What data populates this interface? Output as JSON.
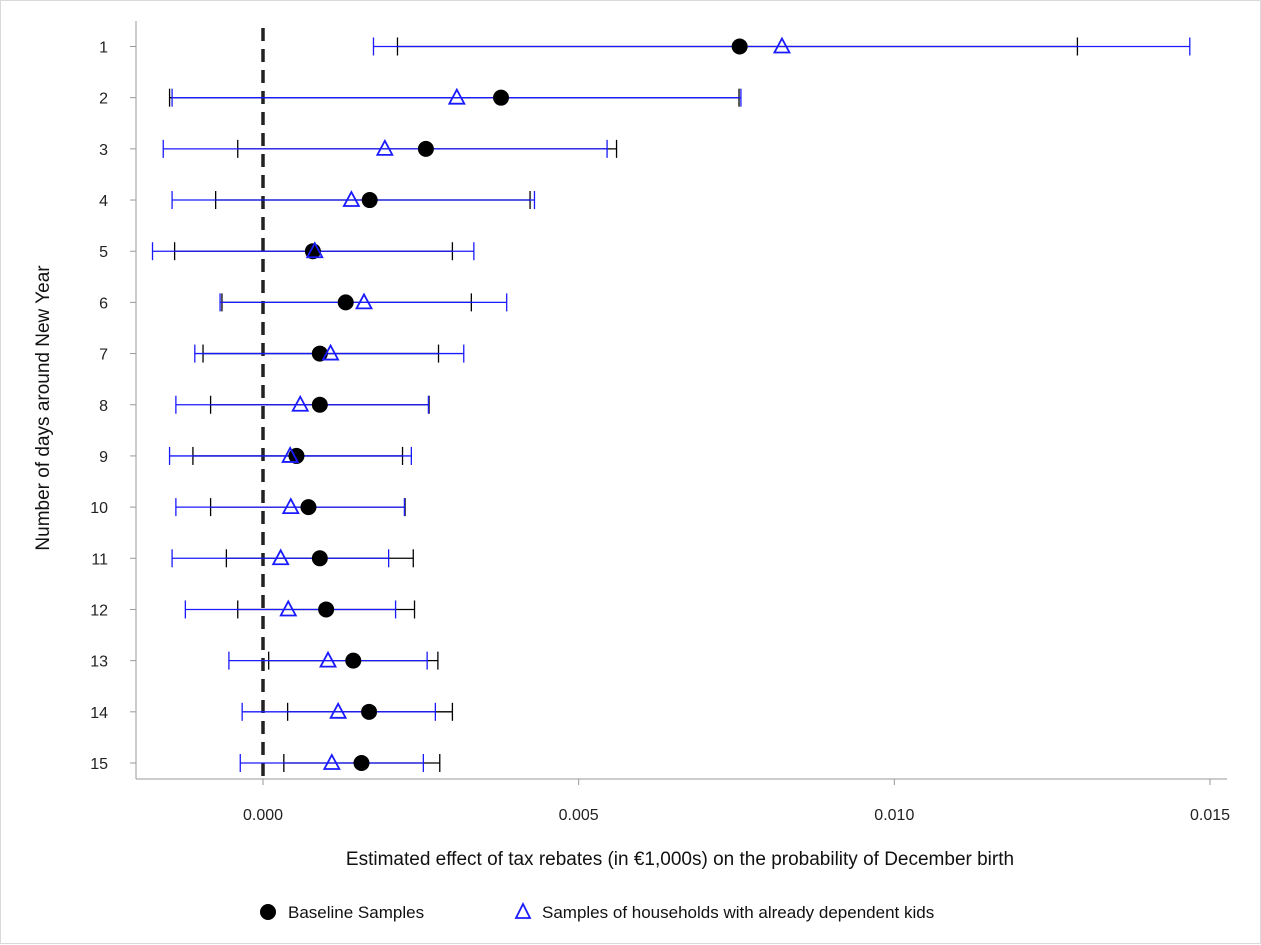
{
  "chart_data": {
    "type": "scatter",
    "subtype": "coefficient plot with confidence intervals (horizontal)",
    "xlabel": "Estimated effect of tax rebates (in €1,000s) on the probability of December birth",
    "ylabel": "Number of days around New Year",
    "xlim": [
      -0.002,
      0.0152
    ],
    "xticks": [
      "0.000",
      "0.005",
      "0.010",
      "0.015"
    ],
    "xtick_values": [
      0.0,
      0.005,
      0.01,
      0.015
    ],
    "categories": [
      "1",
      "2",
      "3",
      "4",
      "5",
      "6",
      "7",
      "8",
      "9",
      "10",
      "11",
      "12",
      "13",
      "14",
      "15"
    ],
    "reference_line": {
      "x": 0.0,
      "style": "dashed",
      "color": "#222222"
    },
    "grid": false,
    "legend_position": "bottom",
    "series": [
      {
        "name": "Baseline Samples",
        "marker": "filled-circle",
        "color": "#000000",
        "estimates": [
          0.00755,
          0.00377,
          0.00258,
          0.00169,
          0.00079,
          0.00131,
          0.0009,
          0.0009,
          0.00053,
          0.00072,
          0.0009,
          0.001,
          0.00143,
          0.00168,
          0.00156
        ],
        "ci_low": [
          0.00213,
          -0.00148,
          -0.0004,
          -0.00075,
          -0.0014,
          -0.00065,
          -0.00095,
          -0.00083,
          -0.00111,
          -0.00083,
          -0.00058,
          -0.0004,
          9e-05,
          0.00039,
          0.00033
        ],
        "ci_high": [
          0.0129,
          0.00754,
          0.0056,
          0.00423,
          0.003,
          0.0033,
          0.00278,
          0.00263,
          0.00221,
          0.00225,
          0.00238,
          0.0024,
          0.00277,
          0.003,
          0.0028
        ]
      },
      {
        "name": "Samples of households with already dependent kids",
        "marker": "open-triangle",
        "color": "#1a1aff",
        "estimates": [
          0.00822,
          0.00307,
          0.00193,
          0.0014,
          0.00082,
          0.0016,
          0.00107,
          0.00059,
          0.00043,
          0.00044,
          0.00028,
          0.0004,
          0.00103,
          0.00119,
          0.00109
        ],
        "ci_low": [
          0.00175,
          -0.00144,
          -0.00158,
          -0.00144,
          -0.00175,
          -0.00068,
          -0.00108,
          -0.00138,
          -0.00148,
          -0.00138,
          -0.00144,
          -0.00123,
          -0.00054,
          -0.00033,
          -0.00036
        ],
        "ci_high": [
          0.01468,
          0.00757,
          0.00545,
          0.0043,
          0.00334,
          0.00386,
          0.00318,
          0.00262,
          0.00235,
          0.00224,
          0.00199,
          0.0021,
          0.0026,
          0.00273,
          0.00254
        ]
      }
    ]
  }
}
